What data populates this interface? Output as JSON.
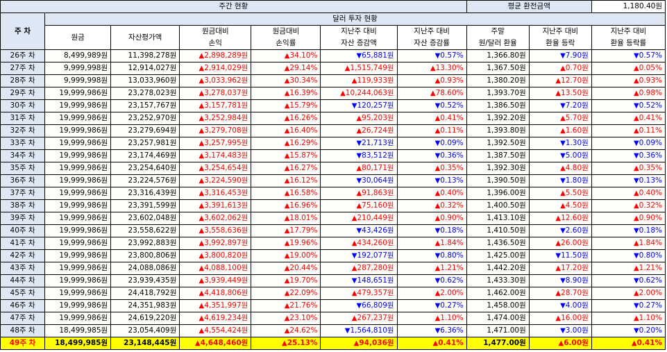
{
  "header": {
    "weekly_status": "주간 현황",
    "avg_rate_label": "평균 환전금액",
    "avg_rate_value": "1,180.40원",
    "dollar_status": "달러 투자 현황",
    "week_label": "주 차"
  },
  "columns": [
    {
      "line1": "원금",
      "line2": ""
    },
    {
      "line1": "자산평가액",
      "line2": ""
    },
    {
      "line1": "원금대비",
      "line2": "손익"
    },
    {
      "line1": "원금대비",
      "line2": "손익률"
    },
    {
      "line1": "지난주 대비",
      "line2": "자산 증감액"
    },
    {
      "line1": "지난주 대비",
      "line2": "자산 증감률"
    },
    {
      "line1": "주말",
      "line2": "원/달러 환율"
    },
    {
      "line1": "지난주 대비",
      "line2": "환율 등락"
    },
    {
      "line1": "지난주 대비",
      "line2": "환율 등락률"
    }
  ],
  "rows": [
    {
      "week": "26주 차",
      "principal": "8,499,989원",
      "asset": "11,398,278원",
      "pl": "2,898,289원",
      "pl_dir": "up",
      "plr": "34.10%",
      "plr_dir": "up",
      "chg": "65,881원",
      "chg_dir": "down",
      "chgr": "0.57%",
      "chgr_dir": "down",
      "rate": "1,366.80원",
      "rchg": "7.90원",
      "rchg_dir": "down",
      "rchgr": "0.57%",
      "rchgr_dir": "down"
    },
    {
      "week": "27주 차",
      "principal": "9,999,998원",
      "asset": "12,914,027원",
      "pl": "2,914,029원",
      "pl_dir": "up",
      "plr": "29.14%",
      "plr_dir": "up",
      "chg": "1,515,749원",
      "chg_dir": "up",
      "chgr": "13.30%",
      "chgr_dir": "up",
      "rate": "1,367.50원",
      "rchg": "0.70원",
      "rchg_dir": "up",
      "rchgr": "0.05%",
      "rchgr_dir": "up"
    },
    {
      "week": "28주 차",
      "principal": "9,999,998원",
      "asset": "13,033,960원",
      "pl": "3,033,962원",
      "pl_dir": "up",
      "plr": "30.34%",
      "plr_dir": "up",
      "chg": "119,933원",
      "chg_dir": "up",
      "chgr": "0.93%",
      "chgr_dir": "up",
      "rate": "1,380.20원",
      "rchg": "12.70원",
      "rchg_dir": "up",
      "rchgr": "0.93%",
      "rchgr_dir": "up"
    },
    {
      "week": "29주 차",
      "principal": "19,999,986원",
      "asset": "23,278,023원",
      "pl": "3,278,037원",
      "pl_dir": "up",
      "plr": "16.39%",
      "plr_dir": "up",
      "chg": "10,244,063원",
      "chg_dir": "up",
      "chgr": "78.60%",
      "chgr_dir": "up",
      "rate": "1,393.70원",
      "rchg": "13.50원",
      "rchg_dir": "up",
      "rchgr": "0.98%",
      "rchgr_dir": "up"
    },
    {
      "week": "30주 차",
      "principal": "19,999,986원",
      "asset": "23,157,767원",
      "pl": "3,157,781원",
      "pl_dir": "up",
      "plr": "15.79%",
      "plr_dir": "up",
      "chg": "120,257원",
      "chg_dir": "down",
      "chgr": "0.52%",
      "chgr_dir": "down",
      "rate": "1,386.50원",
      "rchg": "7.20원",
      "rchg_dir": "down",
      "rchgr": "0.52%",
      "rchgr_dir": "down"
    },
    {
      "week": "31주 차",
      "principal": "19,999,986원",
      "asset": "23,252,970원",
      "pl": "3,252,984원",
      "pl_dir": "up",
      "plr": "16.26%",
      "plr_dir": "up",
      "chg": "95,203원",
      "chg_dir": "up",
      "chgr": "0.41%",
      "chgr_dir": "up",
      "rate": "1,392.20원",
      "rchg": "5.70원",
      "rchg_dir": "up",
      "rchgr": "0.41%",
      "rchgr_dir": "up"
    },
    {
      "week": "32주 차",
      "principal": "19,999,986원",
      "asset": "23,279,694원",
      "pl": "3,279,708원",
      "pl_dir": "up",
      "plr": "16.40%",
      "plr_dir": "up",
      "chg": "26,724원",
      "chg_dir": "up",
      "chgr": "0.11%",
      "chgr_dir": "up",
      "rate": "1,393.80원",
      "rchg": "1.60원",
      "rchg_dir": "up",
      "rchgr": "0.11%",
      "rchgr_dir": "up"
    },
    {
      "week": "33주 차",
      "principal": "19,999,986원",
      "asset": "23,257,981원",
      "pl": "3,257,995원",
      "pl_dir": "up",
      "plr": "16.29%",
      "plr_dir": "up",
      "chg": "21,713원",
      "chg_dir": "down",
      "chgr": "0.09%",
      "chgr_dir": "down",
      "rate": "1,392.50원",
      "rchg": "1.30원",
      "rchg_dir": "down",
      "rchgr": "0.09%",
      "rchgr_dir": "down"
    },
    {
      "week": "34주 차",
      "principal": "19,999,986원",
      "asset": "23,174,469원",
      "pl": "3,174,483원",
      "pl_dir": "up",
      "plr": "15.87%",
      "plr_dir": "up",
      "chg": "83,512원",
      "chg_dir": "down",
      "chgr": "0.36%",
      "chgr_dir": "down",
      "rate": "1,387.50원",
      "rchg": "5.00원",
      "rchg_dir": "down",
      "rchgr": "0.36%",
      "rchgr_dir": "down"
    },
    {
      "week": "35주 차",
      "principal": "19,999,986원",
      "asset": "23,254,640원",
      "pl": "3,254,654원",
      "pl_dir": "up",
      "plr": "16.27%",
      "plr_dir": "up",
      "chg": "80,171원",
      "chg_dir": "up",
      "chgr": "0.35%",
      "chgr_dir": "up",
      "rate": "1,392.30원",
      "rchg": "4.80원",
      "rchg_dir": "up",
      "rchgr": "0.35%",
      "rchgr_dir": "up"
    },
    {
      "week": "36주 차",
      "principal": "19,999,986원",
      "asset": "23,224,576원",
      "pl": "3,224,590원",
      "pl_dir": "up",
      "plr": "16.12%",
      "plr_dir": "up",
      "chg": "30,064원",
      "chg_dir": "down",
      "chgr": "0.13%",
      "chgr_dir": "down",
      "rate": "1,390.50원",
      "rchg": "1.80원",
      "rchg_dir": "down",
      "rchgr": "0.13%",
      "rchgr_dir": "down"
    },
    {
      "week": "37주 차",
      "principal": "19,999,986원",
      "asset": "23,316,439원",
      "pl": "3,316,453원",
      "pl_dir": "up",
      "plr": "16.58%",
      "plr_dir": "up",
      "chg": "91,863원",
      "chg_dir": "up",
      "chgr": "0.40%",
      "chgr_dir": "up",
      "rate": "1,396.00원",
      "rchg": "5.50원",
      "rchg_dir": "up",
      "rchgr": "0.40%",
      "rchgr_dir": "up"
    },
    {
      "week": "38주 차",
      "principal": "19,999,986원",
      "asset": "23,391,599원",
      "pl": "3,391,613원",
      "pl_dir": "up",
      "plr": "16.96%",
      "plr_dir": "up",
      "chg": "75,160원",
      "chg_dir": "up",
      "chgr": "0.32%",
      "chgr_dir": "up",
      "rate": "1,400.50원",
      "rchg": "4.50원",
      "rchg_dir": "up",
      "rchgr": "0.32%",
      "rchgr_dir": "up"
    },
    {
      "week": "39주 차",
      "principal": "19,999,986원",
      "asset": "23,602,048원",
      "pl": "3,602,062원",
      "pl_dir": "up",
      "plr": "18.01%",
      "plr_dir": "up",
      "chg": "210,449원",
      "chg_dir": "up",
      "chgr": "0.90%",
      "chgr_dir": "up",
      "rate": "1,413.10원",
      "rchg": "12.60원",
      "rchg_dir": "up",
      "rchgr": "0.90%",
      "rchgr_dir": "up"
    },
    {
      "week": "40주 차",
      "principal": "19,999,986원",
      "asset": "23,558,622원",
      "pl": "3,558,636원",
      "pl_dir": "up",
      "plr": "17.79%",
      "plr_dir": "up",
      "chg": "43,426원",
      "chg_dir": "down",
      "chgr": "0.18%",
      "chgr_dir": "down",
      "rate": "1,410.50원",
      "rchg": "2.60원",
      "rchg_dir": "down",
      "rchgr": "0.18%",
      "rchgr_dir": "down"
    },
    {
      "week": "41주 차",
      "principal": "19,999,986원",
      "asset": "23,992,883원",
      "pl": "3,992,897원",
      "pl_dir": "up",
      "plr": "19.96%",
      "plr_dir": "up",
      "chg": "434,260원",
      "chg_dir": "up",
      "chgr": "1.84%",
      "chgr_dir": "up",
      "rate": "1,436.50원",
      "rchg": "26.00원",
      "rchg_dir": "up",
      "rchgr": "1.84%",
      "rchgr_dir": "up"
    },
    {
      "week": "42주 차",
      "principal": "19,999,986원",
      "asset": "23,800,806원",
      "pl": "3,800,820원",
      "pl_dir": "up",
      "plr": "19.00%",
      "plr_dir": "up",
      "chg": "192,077원",
      "chg_dir": "down",
      "chgr": "0.80%",
      "chgr_dir": "down",
      "rate": "1,425.00원",
      "rchg": "11.50원",
      "rchg_dir": "down",
      "rchgr": "0.80%",
      "rchgr_dir": "down"
    },
    {
      "week": "43주 차",
      "principal": "19,999,986원",
      "asset": "24,088,086원",
      "pl": "4,088,100원",
      "pl_dir": "up",
      "plr": "20.44%",
      "plr_dir": "up",
      "chg": "287,280원",
      "chg_dir": "up",
      "chgr": "1.21%",
      "chgr_dir": "up",
      "rate": "1,442.20원",
      "rchg": "17.20원",
      "rchg_dir": "up",
      "rchgr": "1.21%",
      "rchgr_dir": "up"
    },
    {
      "week": "44주 차",
      "principal": "19,999,986원",
      "asset": "23,939,435원",
      "pl": "3,939,449원",
      "pl_dir": "up",
      "plr": "19.70%",
      "plr_dir": "up",
      "chg": "148,651원",
      "chg_dir": "down",
      "chgr": "0.62%",
      "chgr_dir": "down",
      "rate": "1,433.30원",
      "rchg": "8.90원",
      "rchg_dir": "down",
      "rchgr": "0.62%",
      "rchgr_dir": "down"
    },
    {
      "week": "45주 차",
      "principal": "19,999,986원",
      "asset": "24,418,792원",
      "pl": "4,418,806원",
      "pl_dir": "up",
      "plr": "22.09%",
      "plr_dir": "up",
      "chg": "479,357원",
      "chg_dir": "up",
      "chgr": "2.00%",
      "chgr_dir": "up",
      "rate": "1,462.00원",
      "rchg": "28.70원",
      "rchg_dir": "up",
      "rchgr": "2.00%",
      "rchgr_dir": "up"
    },
    {
      "week": "46주 차",
      "principal": "19,999,986원",
      "asset": "24,351,983원",
      "pl": "4,351,997원",
      "pl_dir": "up",
      "plr": "21.76%",
      "plr_dir": "up",
      "chg": "66,809원",
      "chg_dir": "down",
      "chgr": "0.27%",
      "chgr_dir": "down",
      "rate": "1,458.00원",
      "rchg": "4.00원",
      "rchg_dir": "down",
      "rchgr": "0.27%",
      "rchgr_dir": "down"
    },
    {
      "week": "47주 차",
      "principal": "19,999,986원",
      "asset": "24,619,220원",
      "pl": "4,619,234원",
      "pl_dir": "up",
      "plr": "23.10%",
      "plr_dir": "up",
      "chg": "267,237원",
      "chg_dir": "up",
      "chgr": "1.10%",
      "chgr_dir": "up",
      "rate": "1,474.00원",
      "rchg": "16.00원",
      "rchg_dir": "up",
      "rchgr": "1.10%",
      "rchgr_dir": "up"
    },
    {
      "week": "48주 차",
      "principal": "18,499,985원",
      "asset": "23,054,409원",
      "pl": "4,554,424원",
      "pl_dir": "up",
      "plr": "24.62%",
      "plr_dir": "up",
      "chg": "1,564,810원",
      "chg_dir": "down",
      "chgr": "6.36%",
      "chgr_dir": "down",
      "rate": "1,471.00원",
      "rchg": "3.00원",
      "rchg_dir": "down",
      "rchgr": "0.20%",
      "rchgr_dir": "down"
    },
    {
      "week": "49주 차",
      "principal": "18,499,985원",
      "asset": "23,148,445원",
      "pl": "4,648,460원",
      "pl_dir": "up",
      "plr": "25.13%",
      "plr_dir": "up",
      "chg": "94,036원",
      "chg_dir": "up",
      "chgr": "0.41%",
      "chgr_dir": "up",
      "rate": "1,477.00원",
      "rchg": "6.00원",
      "rchg_dir": "up",
      "rchgr": "0.41%",
      "rchgr_dir": "up",
      "highlight": true
    }
  ],
  "arrows": {
    "up": "▲",
    "down": "▼"
  },
  "colors": {
    "up": "#ff0000",
    "down": "#0000ff",
    "header_bg": "#dde8f4",
    "highlight_bg": "#ffff00"
  }
}
